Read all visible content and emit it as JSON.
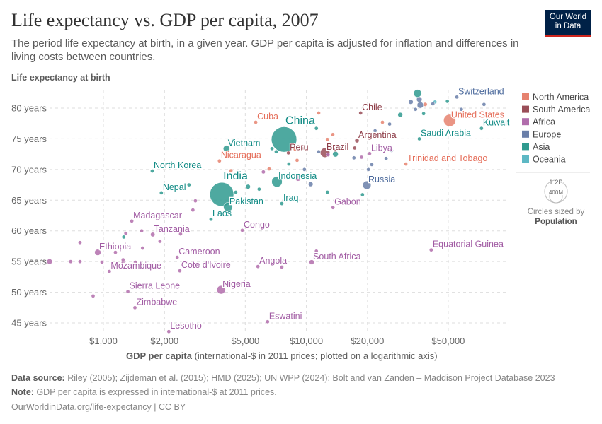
{
  "header": {
    "title": "Life expectancy vs. GDP per capita, 2007",
    "subtitle": "The period life expectancy at birth, in a given year. GDP per capita is adjusted for inflation and differences in living costs between countries.",
    "logo": "Our World in Data"
  },
  "footer": {
    "source_label": "Data source:",
    "source": "Riley (2005); Zijdeman et al. (2015); HMD (2025); UN WPP (2024); Bolt and van Zanden – Maddison Project Database 2023",
    "note_label": "Note:",
    "note": "GDP per capita is expressed in international-$ at 2011 prices.",
    "link": "OurWorldinData.org/life-expectancy | CC BY"
  },
  "chart_data": {
    "type": "scatter",
    "title": "Life expectancy vs. GDP per capita, 2007",
    "ylabel": "Life expectancy at birth",
    "xlabel_bold": "GDP per capita",
    "xlabel_rest": "(international-$ in 2011 prices; plotted on a logarithmic axis)",
    "xscale": "log",
    "xlim": [
      543,
      96000
    ],
    "ylim": [
      43.5,
      82.6
    ],
    "grid": true,
    "xticks": [
      {
        "v": 1000,
        "label": "$1,000"
      },
      {
        "v": 2000,
        "label": "$2,000"
      },
      {
        "v": 5000,
        "label": "$5,000"
      },
      {
        "v": 10000,
        "label": "$10,000"
      },
      {
        "v": 20000,
        "label": "$20,000"
      },
      {
        "v": 50000,
        "label": "$50,000"
      }
    ],
    "yticks": [
      {
        "v": 45,
        "label": "45 years"
      },
      {
        "v": 50,
        "label": "50 years"
      },
      {
        "v": 55,
        "label": "55 years"
      },
      {
        "v": 60,
        "label": "60 years"
      },
      {
        "v": 65,
        "label": "65 years"
      },
      {
        "v": 70,
        "label": "70 years"
      },
      {
        "v": 75,
        "label": "75 years"
      },
      {
        "v": 80,
        "label": "80 years"
      }
    ],
    "legend": {
      "position": "right",
      "items": [
        {
          "name": "North America",
          "color": "#E6826F",
          "label_color": "#E56E5A"
        },
        {
          "name": "South America",
          "color": "#9A4E58",
          "label_color": "#8C3A45"
        },
        {
          "name": "Africa",
          "color": "#B16DAC",
          "label_color": "#A15BA3"
        },
        {
          "name": "Europe",
          "color": "#6A7FA9",
          "label_color": "#4C6A9C"
        },
        {
          "name": "Asia",
          "color": "#2F9A8F",
          "label_color": "#0F8A84"
        },
        {
          "name": "Oceania",
          "color": "#5DB8C4",
          "label_color": "#3FA7B4"
        }
      ]
    },
    "size_legend": {
      "large": "1.2B",
      "small": "400M",
      "caption": "Circles sized by",
      "variable": "Population"
    },
    "points": [
      {
        "name": "China",
        "gdp": 7760,
        "le": 74.9,
        "c": "Asia",
        "pop": 1320000000
      },
      {
        "name": "India",
        "gdp": 3830,
        "le": 65.95,
        "c": "Asia",
        "pop": 1180000000
      },
      {
        "name": "United States",
        "gdp": 50800,
        "le": 78.0,
        "c": "North America",
        "pop": 300000000
      },
      {
        "name": "Indonesia",
        "gdp": 7160,
        "le": 68.0,
        "c": "Asia",
        "pop": 230000000
      },
      {
        "name": "Brazil",
        "gdp": 12360,
        "le": 72.75,
        "c": "South America",
        "pop": 190000000
      },
      {
        "name": "Pakistan",
        "gdp": 4110,
        "le": 63.9,
        "c": "Asia",
        "pop": 170000000
      },
      {
        "name": "Nigeria",
        "gdp": 3800,
        "le": 50.4,
        "c": "Africa",
        "pop": 147000000
      },
      {
        "name": "Russia",
        "gdp": 19860,
        "le": 67.45,
        "c": "Europe",
        "pop": 143000000
      },
      {
        "name": "Vietnam",
        "gdp": 4040,
        "le": 73.4,
        "c": "Asia",
        "pop": 85000000
      },
      {
        "name": "Ethiopia",
        "gdp": 938,
        "le": 56.5,
        "c": "Africa",
        "pop": 80000000
      },
      {
        "name": "Cuba",
        "gdp": 5630,
        "le": 77.7,
        "c": "North America",
        "pop": 11000000
      },
      {
        "name": "Chile",
        "gdp": 18500,
        "le": 79.2,
        "c": "South America",
        "pop": 16000000
      },
      {
        "name": "Argentina",
        "gdp": 17750,
        "le": 74.7,
        "c": "South America",
        "pop": 39000000
      },
      {
        "name": "Peru",
        "gdp": 8150,
        "le": 72.7,
        "c": "South America",
        "pop": 28000000
      },
      {
        "name": "Nicaragua",
        "gdp": 3730,
        "le": 71.4,
        "c": "North America",
        "pop": 5600000
      },
      {
        "name": "North Korea",
        "gdp": 1740,
        "le": 69.75,
        "c": "Asia",
        "pop": 24000000
      },
      {
        "name": "Nepal",
        "gdp": 1930,
        "le": 66.2,
        "c": "Asia",
        "pop": 26000000
      },
      {
        "name": "Laos",
        "gdp": 3390,
        "le": 61.9,
        "c": "Asia",
        "pop": 6000000
      },
      {
        "name": "Iraq",
        "gdp": 7570,
        "le": 64.45,
        "c": "Asia",
        "pop": 29000000
      },
      {
        "name": "Madagascar",
        "gdp": 1380,
        "le": 61.6,
        "c": "Africa",
        "pop": 19000000
      },
      {
        "name": "Tanzania",
        "gdp": 1750,
        "le": 59.4,
        "c": "Africa",
        "pop": 41000000
      },
      {
        "name": "Congo",
        "gdp": 4830,
        "le": 60.1,
        "c": "Africa",
        "pop": 4000000
      },
      {
        "name": "Cameroon",
        "gdp": 2310,
        "le": 55.7,
        "c": "Africa",
        "pop": 19000000
      },
      {
        "name": "Cote d'Ivoire",
        "gdp": 2380,
        "le": 53.5,
        "c": "Africa",
        "pop": 19000000
      },
      {
        "name": "Mozambique",
        "gdp": 1070,
        "le": 53.4,
        "c": "Africa",
        "pop": 22000000
      },
      {
        "name": "Angola",
        "gdp": 5770,
        "le": 54.2,
        "c": "Africa",
        "pop": 21000000
      },
      {
        "name": "Sierra Leone",
        "gdp": 1320,
        "le": 50.1,
        "c": "Africa",
        "pop": 6000000
      },
      {
        "name": "Zimbabwe",
        "gdp": 1430,
        "le": 47.5,
        "c": "Africa",
        "pop": 12000000
      },
      {
        "name": "Lesotho",
        "gdp": 2100,
        "le": 43.6,
        "c": "Africa",
        "pop": 2000000
      },
      {
        "name": "Eswatini",
        "gdp": 6440,
        "le": 45.2,
        "c": "Africa",
        "pop": 1100000
      },
      {
        "name": "Gabon",
        "gdp": 13520,
        "le": 63.8,
        "c": "Africa",
        "pop": 1500000
      },
      {
        "name": "South Africa",
        "gdp": 10620,
        "le": 54.9,
        "c": "Africa",
        "pop": 49000000
      },
      {
        "name": "Equatorial Guinea",
        "gdp": 41200,
        "le": 56.9,
        "c": "Africa",
        "pop": 800000
      },
      {
        "name": "Libya",
        "gdp": 20500,
        "le": 72.6,
        "c": "Africa",
        "pop": 6000000
      },
      {
        "name": "Trinidad and Tobago",
        "gdp": 30900,
        "le": 70.9,
        "c": "North America",
        "pop": 1300000
      },
      {
        "name": "Saudi Arabia",
        "gdp": 36000,
        "le": 75.0,
        "c": "Asia",
        "pop": 25000000
      },
      {
        "name": "Kuwait",
        "gdp": 72900,
        "le": 76.7,
        "c": "Asia",
        "pop": 2500000
      },
      {
        "name": "Switzerland",
        "gdp": 55100,
        "le": 81.8,
        "c": "Europe",
        "pop": 7500000
      },
      {
        "gdp": 543,
        "le": 55.0,
        "c": "Africa",
        "pop": 60000000
      },
      {
        "gdp": 690,
        "le": 55.0,
        "c": "Africa",
        "pop": 8000000
      },
      {
        "gdp": 767,
        "le": 55.0,
        "c": "Africa",
        "pop": 8000000
      },
      {
        "gdp": 767,
        "le": 58.1,
        "c": "Africa",
        "pop": 8000000
      },
      {
        "gdp": 890,
        "le": 49.4,
        "c": "Africa",
        "pop": 8000000
      },
      {
        "gdp": 984,
        "le": 54.9,
        "c": "Africa",
        "pop": 8000000
      },
      {
        "gdp": 1146,
        "le": 56.5,
        "c": "Africa",
        "pop": 8000000
      },
      {
        "gdp": 1250,
        "le": 54.8,
        "c": "Africa",
        "pop": 8000000
      },
      {
        "gdp": 1250,
        "le": 55.3,
        "c": "Africa",
        "pop": 8000000
      },
      {
        "gdp": 1290,
        "le": 59.6,
        "c": "Africa",
        "pop": 8000000
      },
      {
        "gdp": 1436,
        "le": 54.9,
        "c": "Africa",
        "pop": 8000000
      },
      {
        "gdp": 1560,
        "le": 57.2,
        "c": "Africa",
        "pop": 20000000
      },
      {
        "gdp": 1900,
        "le": 58.3,
        "c": "Africa",
        "pop": 8000000
      },
      {
        "gdp": 1544,
        "le": 60.0,
        "c": "Africa",
        "pop": 8000000
      },
      {
        "gdp": 2400,
        "le": 59.5,
        "c": "Africa",
        "pop": 20000000
      },
      {
        "gdp": 2840,
        "le": 64.9,
        "c": "Africa",
        "pop": 8000000
      },
      {
        "gdp": 2760,
        "le": 63.4,
        "c": "Africa",
        "pop": 8000000
      },
      {
        "gdp": 6140,
        "le": 69.6,
        "c": "Africa",
        "pop": 30000000
      },
      {
        "gdp": 9100,
        "le": 68.6,
        "c": "Africa",
        "pop": 75000000
      },
      {
        "gdp": 11200,
        "le": 56.7,
        "c": "Africa",
        "pop": 2000000
      },
      {
        "gdp": 7570,
        "le": 54.1,
        "c": "Africa",
        "pop": 2000000
      },
      {
        "gdp": 12800,
        "le": 72.4,
        "c": "Africa",
        "pop": 30000000
      },
      {
        "gdp": 18700,
        "le": 72.0,
        "c": "Africa",
        "pop": 5000000
      },
      {
        "gdp": 1260,
        "le": 59.0,
        "c": "Asia",
        "pop": 8000000
      },
      {
        "gdp": 2130,
        "le": 67.0,
        "c": "Asia",
        "pop": 8000000
      },
      {
        "gdp": 2640,
        "le": 67.5,
        "c": "Asia",
        "pop": 8000000
      },
      {
        "gdp": 4490,
        "le": 66.3,
        "c": "Asia",
        "pop": 15000000
      },
      {
        "gdp": 5160,
        "le": 67.2,
        "c": "Asia",
        "pop": 45000000
      },
      {
        "gdp": 5850,
        "le": 66.8,
        "c": "Asia",
        "pop": 5000000
      },
      {
        "gdp": 6770,
        "le": 73.4,
        "c": "Asia",
        "pop": 8000000
      },
      {
        "gdp": 7100,
        "le": 72.9,
        "c": "Asia",
        "pop": 8000000
      },
      {
        "gdp": 8200,
        "le": 70.9,
        "c": "Asia",
        "pop": 5000000
      },
      {
        "gdp": 11200,
        "le": 76.7,
        "c": "Asia",
        "pop": 5000000
      },
      {
        "gdp": 12700,
        "le": 66.3,
        "c": "Asia",
        "pop": 5000000
      },
      {
        "gdp": 13900,
        "le": 72.5,
        "c": "Asia",
        "pop": 66000000
      },
      {
        "gdp": 18900,
        "le": 65.9,
        "c": "Asia",
        "pop": 5000000
      },
      {
        "gdp": 35300,
        "le": 82.4,
        "c": "Asia",
        "pop": 127000000
      },
      {
        "gdp": 37800,
        "le": 79.1,
        "c": "Asia",
        "pop": 5000000
      },
      {
        "gdp": 49500,
        "le": 81.1,
        "c": "Asia",
        "pop": 4500000
      },
      {
        "gdp": 29000,
        "le": 78.9,
        "c": "Asia",
        "pop": 48000000
      },
      {
        "gdp": 10500,
        "le": 67.6,
        "c": "Europe",
        "pop": 46000000
      },
      {
        "gdp": 11500,
        "le": 72.9,
        "c": "Europe",
        "pop": 5000000
      },
      {
        "gdp": 14600,
        "le": 73.5,
        "c": "Europe",
        "pop": 7000000
      },
      {
        "gdp": 17150,
        "le": 71.9,
        "c": "Europe",
        "pop": 5000000
      },
      {
        "gdp": 20200,
        "le": 70.0,
        "c": "Europe",
        "pop": 3000000
      },
      {
        "gdp": 21000,
        "le": 70.8,
        "c": "Europe",
        "pop": 3000000
      },
      {
        "gdp": 24700,
        "le": 71.8,
        "c": "Europe",
        "pop": 3000000
      },
      {
        "gdp": 26300,
        "le": 73.1,
        "c": "Europe",
        "pop": 3000000
      },
      {
        "gdp": 21800,
        "le": 76.3,
        "c": "Europe",
        "pop": 5000000
      },
      {
        "gdp": 25700,
        "le": 77.4,
        "c": "Europe",
        "pop": 10000000
      },
      {
        "gdp": 32700,
        "le": 81.0,
        "c": "Europe",
        "pop": 45000000
      },
      {
        "gdp": 36000,
        "le": 81.4,
        "c": "Europe",
        "pop": 60000000
      },
      {
        "gdp": 36400,
        "le": 80.5,
        "c": "Europe",
        "pop": 82000000
      },
      {
        "gdp": 34500,
        "le": 79.8,
        "c": "Europe",
        "pop": 5000000
      },
      {
        "gdp": 42000,
        "le": 80.7,
        "c": "Europe",
        "pop": 8000000
      },
      {
        "gdp": 58000,
        "le": 79.8,
        "c": "Europe",
        "pop": 4500000
      },
      {
        "gdp": 75000,
        "le": 80.6,
        "c": "Europe",
        "pop": 500000
      },
      {
        "gdp": 9780,
        "le": 70.0,
        "c": "Europe",
        "pop": 3000000
      },
      {
        "gdp": 9400,
        "le": 73.7,
        "c": "South America",
        "pop": 8000000
      },
      {
        "gdp": 13900,
        "le": 73.2,
        "c": "South America",
        "pop": 8000000
      },
      {
        "gdp": 17300,
        "le": 73.5,
        "c": "South America",
        "pop": 25000000
      },
      {
        "gdp": 9600,
        "le": 73.5,
        "c": "South America",
        "pop": 14000000
      },
      {
        "gdp": 4250,
        "le": 69.8,
        "c": "North America",
        "pop": 7000000
      },
      {
        "gdp": 6550,
        "le": 70.1,
        "c": "North America",
        "pop": 5000000
      },
      {
        "gdp": 8800,
        "le": 73.3,
        "c": "North America",
        "pop": 5000000
      },
      {
        "gdp": 12700,
        "le": 74.9,
        "c": "North America",
        "pop": 5000000
      },
      {
        "gdp": 13500,
        "le": 75.7,
        "c": "North America",
        "pop": 5000000
      },
      {
        "gdp": 11500,
        "le": 79.2,
        "c": "North America",
        "pop": 4000000
      },
      {
        "gdp": 23700,
        "le": 77.7,
        "c": "North America",
        "pop": 3000000
      },
      {
        "gdp": 38500,
        "le": 80.6,
        "c": "North America",
        "pop": 33000000
      },
      {
        "gdp": 9000,
        "le": 71.5,
        "c": "North America",
        "pop": 4000000
      },
      {
        "gdp": 43000,
        "le": 81.0,
        "c": "Oceania",
        "pop": 21000000
      }
    ]
  }
}
